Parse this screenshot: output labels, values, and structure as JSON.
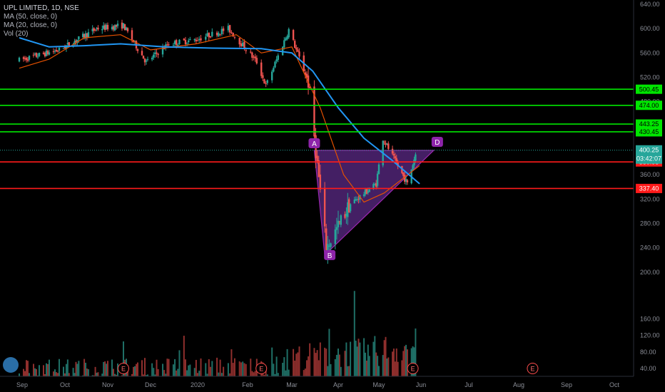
{
  "legend": {
    "symbol": "UPL LIMITED, 1D, NSE",
    "ma50": "MA (50, close, 0)",
    "ma20": "MA (20, close, 0)",
    "vol": "Vol (20)"
  },
  "colors": {
    "background": "#000000",
    "up_candle": "#26a69a",
    "down_candle": "#ef5350",
    "ma50": "#2196f3",
    "ma20": "#e65100",
    "support_resistance_green": "#00e600",
    "support_resistance_red": "#ff1a1a",
    "pattern_fill": "#5b2a86",
    "pattern_stroke": "#9c27b0",
    "last_price": "#26a69a"
  },
  "chart_data": {
    "type": "candlestick",
    "title": "UPL LIMITED, 1D, NSE",
    "price_axis": {
      "ticks": [
        640,
        600,
        560,
        520,
        480,
        440,
        400,
        360,
        320,
        280,
        240,
        200
      ],
      "tick_labels": [
        "640.00",
        "600.00",
        "560.00",
        "520.00",
        "480.00",
        "440.00",
        "400.00",
        "360.00",
        "320.00",
        "280.00",
        "240.00",
        "200.00"
      ],
      "range": [
        200,
        640
      ]
    },
    "volume_axis": {
      "ticks": [
        160,
        120,
        80,
        40
      ],
      "tick_labels": [
        "160.00",
        "120.00",
        "80.00",
        "40.00"
      ]
    },
    "time_axis": {
      "labels": [
        "Sep",
        "Oct",
        "Nov",
        "Dec",
        "2020",
        "Feb",
        "Mar",
        "Apr",
        "May",
        "Jun",
        "Jul",
        "Aug",
        "Sep",
        "Oct"
      ]
    },
    "horizontal_levels": [
      {
        "value": 500.45,
        "label": "500.45",
        "color": "green"
      },
      {
        "value": 474.0,
        "label": "474.00",
        "color": "green"
      },
      {
        "value": 443.25,
        "label": "443.25",
        "color": "green"
      },
      {
        "value": 430.45,
        "label": "430.45",
        "color": "green"
      },
      {
        "value": 380.95,
        "label": "380.95",
        "color": "red"
      },
      {
        "value": 337.4,
        "label": "337.40",
        "color": "red"
      }
    ],
    "last_price": {
      "value": "400.25",
      "countdown": "03:42:07"
    },
    "pattern": {
      "type": "triangle",
      "points": [
        {
          "label": "A",
          "date": "2020-03-16",
          "price": 400
        },
        {
          "label": "B",
          "date": "2020-03-23",
          "price": 228
        },
        {
          "label": "D",
          "date": "2020-06-09",
          "price": 400
        }
      ]
    },
    "events": [
      {
        "label": "E",
        "date": "2019-11-12"
      },
      {
        "label": "E",
        "date": "2020-02-10"
      },
      {
        "label": "E",
        "date": "2020-05-26"
      },
      {
        "label": "E",
        "date": "2020-08-10"
      }
    ],
    "price_segments": [
      {
        "start": "2019-08-30",
        "end": "2019-09-27",
        "from": 548,
        "to": 565
      },
      {
        "start": "2019-09-27",
        "end": "2019-10-24",
        "from": 565,
        "to": 600
      },
      {
        "start": "2019-10-24",
        "end": "2019-11-12",
        "from": 600,
        "to": 605
      },
      {
        "start": "2019-11-12",
        "end": "2019-11-28",
        "from": 605,
        "to": 545
      },
      {
        "start": "2019-11-28",
        "end": "2019-12-13",
        "from": 545,
        "to": 575
      },
      {
        "start": "2019-12-13",
        "end": "2019-12-31",
        "from": 575,
        "to": 582
      },
      {
        "start": "2019-12-31",
        "end": "2020-01-20",
        "from": 582,
        "to": 600
      },
      {
        "start": "2020-01-20",
        "end": "2020-02-07",
        "from": 600,
        "to": 545
      },
      {
        "start": "2020-02-07",
        "end": "2020-02-13",
        "from": 545,
        "to": 506
      },
      {
        "start": "2020-02-13",
        "end": "2020-02-28",
        "from": 506,
        "to": 598
      },
      {
        "start": "2020-02-28",
        "end": "2020-03-12",
        "from": 598,
        "to": 512
      },
      {
        "start": "2020-03-12",
        "end": "2020-03-17",
        "from": 512,
        "to": 400
      },
      {
        "start": "2020-03-17",
        "end": "2020-03-24",
        "from": 400,
        "to": 240
      },
      {
        "start": "2020-03-24",
        "end": "2020-04-09",
        "from": 240,
        "to": 310
      },
      {
        "start": "2020-04-09",
        "end": "2020-04-29",
        "from": 310,
        "to": 345
      },
      {
        "start": "2020-04-29",
        "end": "2020-05-04",
        "from": 345,
        "to": 420
      },
      {
        "start": "2020-05-04",
        "end": "2020-05-22",
        "from": 420,
        "to": 345
      },
      {
        "start": "2020-05-22",
        "end": "2020-05-29",
        "from": 345,
        "to": 402
      }
    ],
    "volume_segments": [
      {
        "start": "2019-08-30",
        "end": "2020-03-01",
        "from": 45,
        "to": 50
      },
      {
        "start": "2020-03-01",
        "end": "2020-04-15",
        "from": 70,
        "to": 85
      },
      {
        "start": "2020-04-15",
        "end": "2020-05-29",
        "from": 80,
        "to": 100
      }
    ],
    "ma50_points": [
      {
        "date": "2019-08-30",
        "value": 585
      },
      {
        "date": "2019-09-20",
        "value": 570
      },
      {
        "date": "2019-10-15",
        "value": 572
      },
      {
        "date": "2019-11-10",
        "value": 575
      },
      {
        "date": "2019-12-10",
        "value": 570
      },
      {
        "date": "2020-01-10",
        "value": 568
      },
      {
        "date": "2020-02-10",
        "value": 567
      },
      {
        "date": "2020-03-01",
        "value": 560
      },
      {
        "date": "2020-03-15",
        "value": 530
      },
      {
        "date": "2020-04-01",
        "value": 470
      },
      {
        "date": "2020-04-20",
        "value": 420
      },
      {
        "date": "2020-05-10",
        "value": 385
      },
      {
        "date": "2020-05-31",
        "value": 345
      }
    ],
    "ma20_points": [
      {
        "date": "2019-08-30",
        "value": 535
      },
      {
        "date": "2019-09-20",
        "value": 550
      },
      {
        "date": "2019-10-15",
        "value": 585
      },
      {
        "date": "2019-11-10",
        "value": 590
      },
      {
        "date": "2019-12-01",
        "value": 565
      },
      {
        "date": "2019-12-31",
        "value": 575
      },
      {
        "date": "2020-01-25",
        "value": 590
      },
      {
        "date": "2020-02-10",
        "value": 560
      },
      {
        "date": "2020-03-01",
        "value": 570
      },
      {
        "date": "2020-03-20",
        "value": 470
      },
      {
        "date": "2020-04-05",
        "value": 360
      },
      {
        "date": "2020-04-20",
        "value": 315
      },
      {
        "date": "2020-05-05",
        "value": 330
      },
      {
        "date": "2020-05-31",
        "value": 375
      }
    ]
  }
}
